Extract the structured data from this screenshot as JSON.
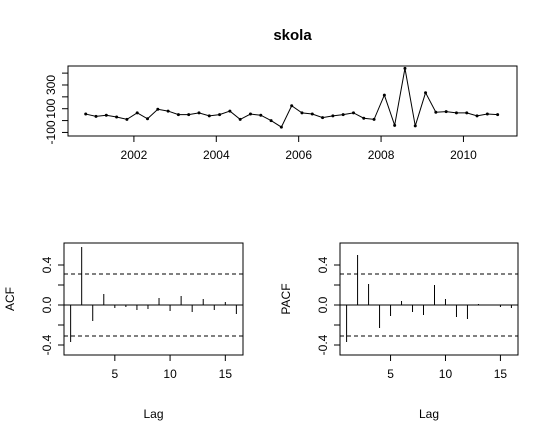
{
  "chart_data": [
    {
      "type": "line",
      "title": "skola",
      "xlabel": "",
      "ylabel": "",
      "xlim": [
        2000.4,
        2011.3
      ],
      "ylim": [
        -130,
        460
      ],
      "x_ticks": [
        2002,
        2004,
        2006,
        2008,
        2010
      ],
      "x_tick_labels": [
        "2002",
        "2004",
        "2006",
        "2008",
        "2010"
      ],
      "y_ticks": [
        -100,
        0,
        100,
        200,
        300,
        400
      ],
      "y_tick_labels": [
        "-100",
        "",
        "100",
        "",
        "300",
        ""
      ],
      "x": [
        2000.83,
        2001.08,
        2001.33,
        2001.58,
        2001.83,
        2002.08,
        2002.33,
        2002.58,
        2002.83,
        2003.08,
        2003.33,
        2003.58,
        2003.83,
        2004.08,
        2004.33,
        2004.58,
        2004.83,
        2005.08,
        2005.33,
        2005.58,
        2005.83,
        2006.08,
        2006.33,
        2006.58,
        2006.83,
        2007.08,
        2007.33,
        2007.58,
        2007.83,
        2008.08,
        2008.33,
        2008.58,
        2008.83,
        2009.08,
        2009.33,
        2009.58,
        2009.83,
        2010.08,
        2010.33,
        2010.58,
        2010.83
      ],
      "values": [
        55,
        35,
        45,
        30,
        10,
        65,
        15,
        95,
        80,
        50,
        50,
        65,
        40,
        50,
        80,
        10,
        55,
        45,
        0,
        -55,
        125,
        65,
        55,
        25,
        40,
        50,
        65,
        20,
        10,
        215,
        -40,
        440,
        -45,
        235,
        70,
        75,
        65,
        65,
        40,
        55,
        50
      ]
    },
    {
      "type": "bar",
      "title": "",
      "xlabel": "Lag",
      "ylabel": "ACF",
      "xlim": [
        0.4,
        16.6
      ],
      "ylim": [
        -0.5,
        0.62
      ],
      "x_ticks": [
        5,
        10,
        15
      ],
      "x_tick_labels": [
        "5",
        "10",
        "15"
      ],
      "y_ticks": [
        -0.4,
        -0.2,
        0.0,
        0.2,
        0.4
      ],
      "y_tick_labels": [
        "-0.4",
        "",
        "0.0",
        "",
        "0.4"
      ],
      "confidence_band": 0.31,
      "lags": [
        1,
        2,
        3,
        4,
        5,
        6,
        7,
        8,
        9,
        10,
        11,
        12,
        13,
        14,
        15,
        16
      ],
      "values": [
        -0.37,
        0.58,
        -0.16,
        0.11,
        -0.03,
        -0.02,
        -0.05,
        -0.04,
        0.07,
        -0.06,
        0.09,
        -0.07,
        0.06,
        -0.05,
        0.03,
        -0.09
      ]
    },
    {
      "type": "bar",
      "title": "",
      "xlabel": "Lag",
      "ylabel": "PACF",
      "xlim": [
        0.4,
        16.6
      ],
      "ylim": [
        -0.5,
        0.62
      ],
      "x_ticks": [
        5,
        10,
        15
      ],
      "x_tick_labels": [
        "5",
        "10",
        "15"
      ],
      "y_ticks": [
        -0.4,
        -0.2,
        0.0,
        0.2,
        0.4
      ],
      "y_tick_labels": [
        "-0.4",
        "",
        "0.0",
        "",
        "0.4"
      ],
      "confidence_band": 0.31,
      "lags": [
        1,
        2,
        3,
        4,
        5,
        6,
        7,
        8,
        9,
        10,
        11,
        12,
        13,
        14,
        15,
        16
      ],
      "values": [
        -0.37,
        0.5,
        0.21,
        -0.23,
        -0.11,
        0.04,
        -0.07,
        -0.1,
        0.2,
        0.06,
        -0.12,
        -0.14,
        0.01,
        0.0,
        -0.02,
        -0.03
      ]
    }
  ]
}
